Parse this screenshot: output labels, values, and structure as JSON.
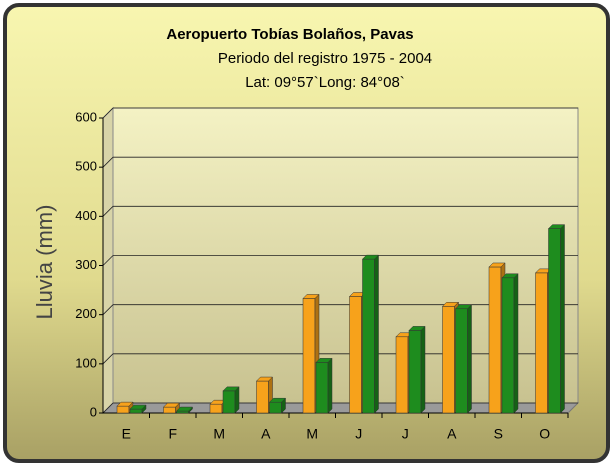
{
  "chart_data": {
    "type": "bar",
    "title": "Aeropuerto Tobías Bolaños, Pavas",
    "subtitle": [
      "Periodo del registro 1975 - 2004",
      "Lat: 09°57`Long: 84°08`"
    ],
    "y_label": "Lluvia (mm)",
    "categories": [
      "E",
      "F",
      "M",
      "A",
      "M",
      "J",
      "J",
      "A",
      "S",
      "O"
    ],
    "series": [
      {
        "color": "#f7a21b",
        "values": [
          14,
          12,
          18,
          65,
          233,
          237,
          155,
          217,
          297,
          285
        ]
      },
      {
        "color": "#1e8c1e",
        "values": [
          8,
          4,
          45,
          22,
          103,
          313,
          168,
          212,
          275,
          375
        ]
      }
    ],
    "ylim": [
      0,
      600
    ],
    "yticks": [
      0,
      100,
      200,
      300,
      400,
      500,
      600
    ],
    "grid": true
  }
}
